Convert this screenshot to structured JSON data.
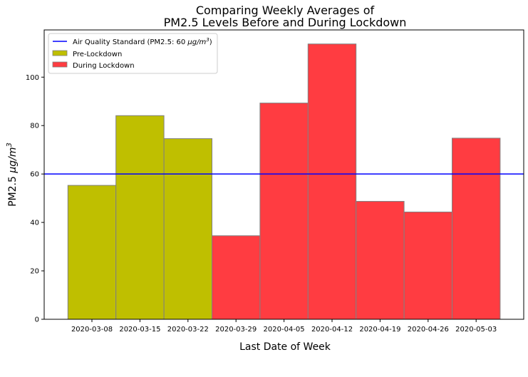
{
  "chart_data": {
    "type": "bar",
    "title_line1": "Comparing Weekly Averages of",
    "title_line2": "PM2.5 Levels Before and During Lockdown",
    "xlabel": "Last Date of Week",
    "ylabel_main": "PM2.5 ",
    "ylabel_unit": "μg/m",
    "ylabel_exp": "3",
    "categories": [
      "2020-03-08",
      "2020-03-15",
      "2020-03-22",
      "2020-03-29",
      "2020-04-05",
      "2020-04-12",
      "2020-04-19",
      "2020-04-26",
      "2020-05-03"
    ],
    "series": [
      {
        "name": "Pre-Lockdown",
        "color": "#bfbf00",
        "values": [
          55.3,
          84.1,
          74.6,
          null,
          null,
          null,
          null,
          null,
          null
        ]
      },
      {
        "name": "During Lockdown",
        "color": "#ff3c41",
        "values": [
          null,
          null,
          null,
          34.5,
          89.3,
          113.7,
          48.7,
          44.3,
          74.8
        ]
      }
    ],
    "reference_line": {
      "name_prefix": "Air Quality Standard (PM2.5: 60 ",
      "name_unit": "μg/m",
      "name_exp": "3",
      "name_suffix": ")",
      "value": 60,
      "color": "#0000ff"
    },
    "ylim": [
      0,
      119.5
    ],
    "yticks": [
      0,
      20,
      40,
      60,
      80,
      100
    ],
    "bar_edge_color": "#808080",
    "grid": false,
    "legend_position": "top-left"
  }
}
